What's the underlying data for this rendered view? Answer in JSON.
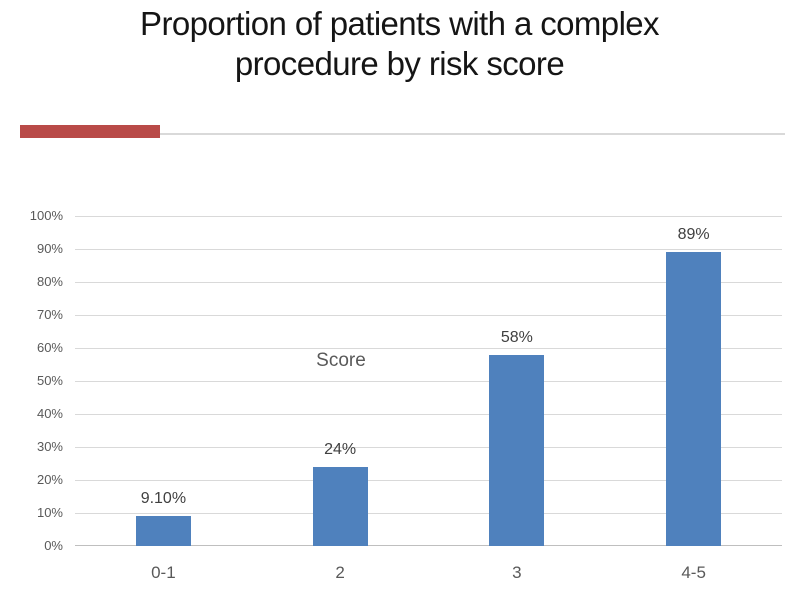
{
  "slide": {
    "title": "Proportion of patients with a complex procedure by risk score",
    "title_color": "#151515",
    "accent_color": "#b94a48",
    "divider_color": "#d9d9d9"
  },
  "chart_data": {
    "type": "bar",
    "title": "Proportion of patients with a complex procedure by risk score",
    "categories": [
      "0-1",
      "2",
      "3",
      "4-5"
    ],
    "values": [
      9.1,
      24,
      58,
      89
    ],
    "value_labels": [
      "9.10%",
      "24%",
      "58%",
      "89%"
    ],
    "xlabel": "Score",
    "ylabel": "",
    "ylim": [
      0,
      100
    ],
    "ytick_step": 10,
    "ytick_labels": [
      "0%",
      "10%",
      "20%",
      "30%",
      "40%",
      "50%",
      "60%",
      "70%",
      "80%",
      "90%",
      "100%"
    ],
    "grid": true,
    "legend": "none",
    "bar_color": "#4f81bd",
    "gridline_color": "#d9d9d9",
    "axis_line_color": "#bfbfbf",
    "value_label_color": "#404040",
    "tick_label_color": "#595959",
    "axis_title_color": "#595959"
  }
}
